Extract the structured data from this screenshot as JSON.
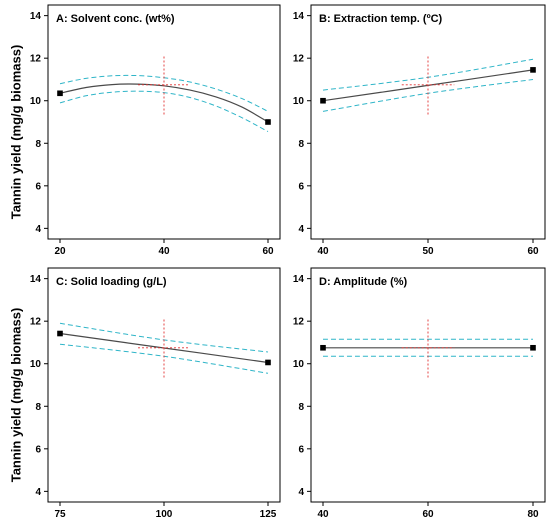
{
  "figure": {
    "y_axis_label": "Tannin yield (mg/g biomass)"
  },
  "chart_data": [
    {
      "type": "line",
      "title": "A: Solvent conc. (wt%)",
      "xlim": [
        20,
        60
      ],
      "ylim": [
        3.5,
        14.5
      ],
      "xticks": [
        20,
        40,
        60
      ],
      "yticks": [
        4,
        6,
        8,
        10,
        12,
        14
      ],
      "x": [
        20,
        25,
        30,
        35,
        40,
        45,
        50,
        55,
        60
      ],
      "fit": [
        10.35,
        10.62,
        10.76,
        10.78,
        10.7,
        10.5,
        10.18,
        9.7,
        9.0
      ],
      "lower": [
        9.9,
        10.23,
        10.4,
        10.45,
        10.38,
        10.15,
        9.75,
        9.2,
        8.55
      ],
      "upper": [
        10.8,
        11.05,
        11.17,
        11.18,
        11.08,
        10.88,
        10.55,
        10.1,
        9.5
      ],
      "endpoints": [
        [
          20,
          10.35
        ],
        [
          60,
          9.0
        ]
      ],
      "center_x": 40,
      "center_vline": [
        9.35,
        12.15
      ],
      "center_hline": {
        "x": [
          35,
          45
        ],
        "y": 10.75
      }
    },
    {
      "type": "line",
      "title": "B: Extraction temp. (ºC)",
      "xlim": [
        40,
        60
      ],
      "ylim": [
        3.5,
        14.5
      ],
      "xticks": [
        40,
        50,
        60
      ],
      "yticks": [
        4,
        6,
        8,
        10,
        12,
        14
      ],
      "x": [
        40,
        50,
        60
      ],
      "fit": [
        10.0,
        10.72,
        11.45
      ],
      "lower": [
        9.5,
        10.35,
        11.0
      ],
      "upper": [
        10.5,
        11.1,
        11.95
      ],
      "endpoints": [
        [
          40,
          10.0
        ],
        [
          60,
          11.45
        ]
      ],
      "center_x": 50,
      "center_vline": [
        9.35,
        12.15
      ],
      "center_hline": {
        "x": [
          47.5,
          52.5
        ],
        "y": 10.75
      }
    },
    {
      "type": "line",
      "title": "C: Solid loading (g/L)",
      "xlim": [
        75,
        125
      ],
      "ylim": [
        3.5,
        14.5
      ],
      "xticks": [
        75,
        100,
        125
      ],
      "yticks": [
        4,
        6,
        8,
        10,
        12,
        14
      ],
      "x": [
        75,
        100,
        125
      ],
      "fit": [
        11.42,
        10.74,
        10.06
      ],
      "lower": [
        10.92,
        10.35,
        9.55
      ],
      "upper": [
        11.9,
        11.12,
        10.55
      ],
      "endpoints": [
        [
          75,
          11.42
        ],
        [
          125,
          10.06
        ]
      ],
      "center_x": 100,
      "center_vline": [
        9.35,
        12.15
      ],
      "center_hline": {
        "x": [
          93.75,
          106.25
        ],
        "y": 10.75
      }
    },
    {
      "type": "line",
      "title": "D: Amplitude (%)",
      "xlim": [
        40,
        80
      ],
      "ylim": [
        3.5,
        14.5
      ],
      "xticks": [
        40,
        60,
        80
      ],
      "yticks": [
        4,
        6,
        8,
        10,
        12,
        14
      ],
      "x": [
        40,
        60,
        80
      ],
      "fit": [
        10.75,
        10.75,
        10.75
      ],
      "lower": [
        10.35,
        10.35,
        10.35
      ],
      "upper": [
        11.15,
        11.15,
        11.15
      ],
      "endpoints": [
        [
          40,
          10.75
        ],
        [
          80,
          10.75
        ]
      ],
      "center_x": 60,
      "center_vline": [
        9.35,
        12.15
      ],
      "center_hline": {
        "x": [
          55,
          65
        ],
        "y": 10.75
      }
    }
  ],
  "colors": {
    "fit": "#4a4a4a",
    "ci": "#2fb5c8",
    "center": "#e23030",
    "axis": "#000000"
  }
}
